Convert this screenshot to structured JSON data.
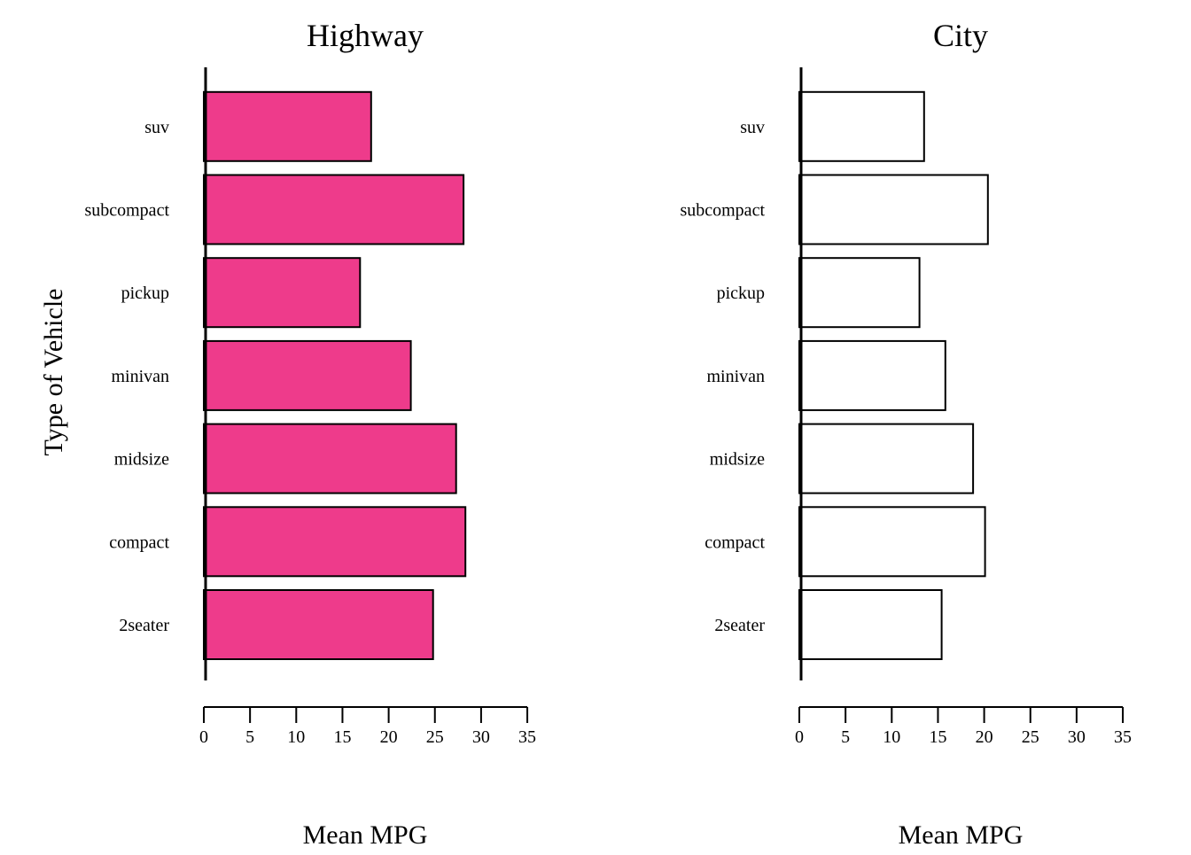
{
  "chart_data": [
    {
      "type": "bar",
      "orientation": "horizontal",
      "title": "Highway",
      "xlabel": "Mean MPG",
      "ylabel": "Type of Vehicle",
      "categories": [
        "2seater",
        "compact",
        "midsize",
        "minivan",
        "pickup",
        "subcompact",
        "suv"
      ],
      "values": [
        24.8,
        28.3,
        27.3,
        22.4,
        16.9,
        28.1,
        18.1
      ],
      "xlim": [
        0,
        35
      ],
      "xticks": [
        0,
        5,
        10,
        15,
        20,
        25,
        30,
        35
      ],
      "fill": "#ee3b8b",
      "edge": "#000000"
    },
    {
      "type": "bar",
      "orientation": "horizontal",
      "title": "City",
      "xlabel": "Mean MPG",
      "ylabel": "",
      "categories": [
        "2seater",
        "compact",
        "midsize",
        "minivan",
        "pickup",
        "subcompact",
        "suv"
      ],
      "values": [
        15.4,
        20.1,
        18.8,
        15.8,
        13.0,
        20.4,
        13.5
      ],
      "xlim": [
        0,
        35
      ],
      "xticks": [
        0,
        5,
        10,
        15,
        20,
        25,
        30,
        35
      ],
      "fill": "#ffffff",
      "edge": "#000000"
    }
  ]
}
